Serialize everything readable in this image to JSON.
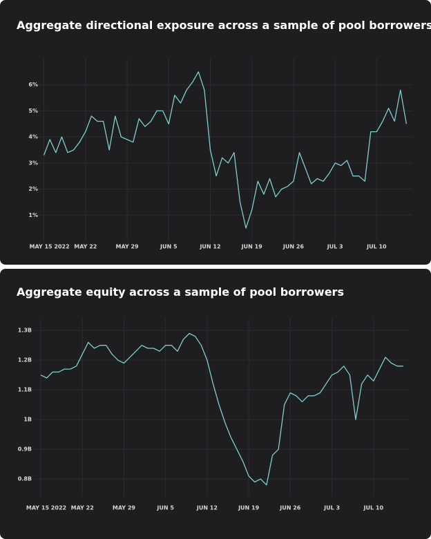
{
  "chart_data": [
    {
      "type": "line",
      "title": "Aggregate directional exposure across a sample of pool borrowers",
      "x": [
        "2022-05-15",
        "2022-05-16",
        "2022-05-17",
        "2022-05-18",
        "2022-05-19",
        "2022-05-20",
        "2022-05-21",
        "2022-05-22",
        "2022-05-23",
        "2022-05-24",
        "2022-05-25",
        "2022-05-26",
        "2022-05-27",
        "2022-05-28",
        "2022-05-29",
        "2022-05-30",
        "2022-05-31",
        "2022-06-01",
        "2022-06-02",
        "2022-06-03",
        "2022-06-04",
        "2022-06-05",
        "2022-06-06",
        "2022-06-07",
        "2022-06-08",
        "2022-06-09",
        "2022-06-10",
        "2022-06-11",
        "2022-06-12",
        "2022-06-13",
        "2022-06-14",
        "2022-06-15",
        "2022-06-16",
        "2022-06-17",
        "2022-06-18",
        "2022-06-19",
        "2022-06-20",
        "2022-06-21",
        "2022-06-22",
        "2022-06-23",
        "2022-06-24",
        "2022-06-25",
        "2022-06-26",
        "2022-06-27",
        "2022-06-28",
        "2022-06-29",
        "2022-06-30",
        "2022-07-01",
        "2022-07-02",
        "2022-07-03",
        "2022-07-04",
        "2022-07-05",
        "2022-07-06",
        "2022-07-07",
        "2022-07-08",
        "2022-07-09",
        "2022-07-10",
        "2022-07-11",
        "2022-07-12",
        "2022-07-13",
        "2022-07-14",
        "2022-07-15"
      ],
      "series": [
        {
          "color": "#7fcfd3",
          "values": [
            3.3,
            3.9,
            3.4,
            4.0,
            3.4,
            3.5,
            3.8,
            4.2,
            4.8,
            4.6,
            4.6,
            3.5,
            4.8,
            4.0,
            3.9,
            3.8,
            4.7,
            4.4,
            4.6,
            5.0,
            5.0,
            4.5,
            5.6,
            5.3,
            5.8,
            6.1,
            6.5,
            5.8,
            3.5,
            2.5,
            3.2,
            3.0,
            3.4,
            1.5,
            0.5,
            1.2,
            2.3,
            1.8,
            2.4,
            1.7,
            2.0,
            2.1,
            2.3,
            3.4,
            2.8,
            2.2,
            2.4,
            2.3,
            2.6,
            3.0,
            2.9,
            3.1,
            2.5,
            2.5,
            2.3,
            4.2,
            4.2,
            4.6,
            5.1,
            4.6,
            5.8,
            4.5
          ]
        }
      ],
      "xlim": [
        "2022-05-14",
        "2022-07-16"
      ],
      "xticks": [
        {
          "value": "2022-05-15",
          "label": "MAY 15 2022"
        },
        {
          "value": "2022-05-22",
          "label": "MAY 22"
        },
        {
          "value": "2022-05-29",
          "label": "MAY 29"
        },
        {
          "value": "2022-06-05",
          "label": "JUN 5"
        },
        {
          "value": "2022-06-12",
          "label": "JUN 12"
        },
        {
          "value": "2022-06-19",
          "label": "JUN 19"
        },
        {
          "value": "2022-06-26",
          "label": "JUN 26"
        },
        {
          "value": "2022-07-03",
          "label": "JUL 3"
        },
        {
          "value": "2022-07-10",
          "label": "JUL 10"
        }
      ],
      "ylim": [
        0,
        7
      ],
      "yticks": [
        {
          "value": 1,
          "label": "1%"
        },
        {
          "value": 2,
          "label": "2%"
        },
        {
          "value": 3,
          "label": "3%"
        },
        {
          "value": 4,
          "label": "4%"
        },
        {
          "value": 5,
          "label": "5%"
        },
        {
          "value": 6,
          "label": "6%"
        }
      ],
      "grid": true
    },
    {
      "type": "line",
      "title": "Aggregate equity across a sample of pool borrowers",
      "x": [
        "2022-05-15",
        "2022-05-16",
        "2022-05-17",
        "2022-05-18",
        "2022-05-19",
        "2022-05-20",
        "2022-05-21",
        "2022-05-22",
        "2022-05-23",
        "2022-05-24",
        "2022-05-25",
        "2022-05-26",
        "2022-05-27",
        "2022-05-28",
        "2022-05-29",
        "2022-05-30",
        "2022-05-31",
        "2022-06-01",
        "2022-06-02",
        "2022-06-03",
        "2022-06-04",
        "2022-06-05",
        "2022-06-06",
        "2022-06-07",
        "2022-06-08",
        "2022-06-09",
        "2022-06-10",
        "2022-06-11",
        "2022-06-12",
        "2022-06-13",
        "2022-06-14",
        "2022-06-15",
        "2022-06-16",
        "2022-06-17",
        "2022-06-18",
        "2022-06-19",
        "2022-06-20",
        "2022-06-21",
        "2022-06-22",
        "2022-06-23",
        "2022-06-24",
        "2022-06-25",
        "2022-06-26",
        "2022-06-27",
        "2022-06-28",
        "2022-06-29",
        "2022-06-30",
        "2022-07-01",
        "2022-07-02",
        "2022-07-03",
        "2022-07-04",
        "2022-07-05",
        "2022-07-06",
        "2022-07-07",
        "2022-07-08",
        "2022-07-09",
        "2022-07-10",
        "2022-07-11",
        "2022-07-12",
        "2022-07-13",
        "2022-07-14",
        "2022-07-15"
      ],
      "series": [
        {
          "color": "#7fcfd3",
          "values": [
            1.15,
            1.14,
            1.16,
            1.16,
            1.17,
            1.17,
            1.18,
            1.22,
            1.26,
            1.24,
            1.25,
            1.25,
            1.22,
            1.2,
            1.19,
            1.21,
            1.23,
            1.25,
            1.24,
            1.24,
            1.23,
            1.25,
            1.25,
            1.23,
            1.27,
            1.29,
            1.28,
            1.25,
            1.2,
            1.12,
            1.05,
            0.99,
            0.94,
            0.9,
            0.86,
            0.81,
            0.79,
            0.8,
            0.78,
            0.88,
            0.9,
            1.05,
            1.09,
            1.08,
            1.06,
            1.08,
            1.08,
            1.09,
            1.12,
            1.15,
            1.16,
            1.18,
            1.15,
            1.0,
            1.12,
            1.15,
            1.13,
            1.17,
            1.21,
            1.19,
            1.18,
            1.18
          ]
        }
      ],
      "xlim": [
        "2022-05-14",
        "2022-07-16"
      ],
      "xticks": [
        {
          "value": "2022-05-15",
          "label": "MAY 15 2022"
        },
        {
          "value": "2022-05-22",
          "label": "MAY 22"
        },
        {
          "value": "2022-05-29",
          "label": "MAY 29"
        },
        {
          "value": "2022-06-05",
          "label": "JUN 5"
        },
        {
          "value": "2022-06-12",
          "label": "JUN 12"
        },
        {
          "value": "2022-06-19",
          "label": "JUN 19"
        },
        {
          "value": "2022-06-26",
          "label": "JUN 26"
        },
        {
          "value": "2022-07-03",
          "label": "JUL 3"
        },
        {
          "value": "2022-07-10",
          "label": "JUL 10"
        }
      ],
      "ylim": [
        0.74,
        1.34
      ],
      "yticks": [
        {
          "value": 0.8,
          "label": "0.8B"
        },
        {
          "value": 0.9,
          "label": "0.9B"
        },
        {
          "value": 1,
          "label": "1B"
        },
        {
          "value": 1.1,
          "label": "1.1B"
        },
        {
          "value": 1.2,
          "label": "1.2B"
        },
        {
          "value": 1.3,
          "label": "1.3B"
        }
      ],
      "grid": true
    }
  ]
}
